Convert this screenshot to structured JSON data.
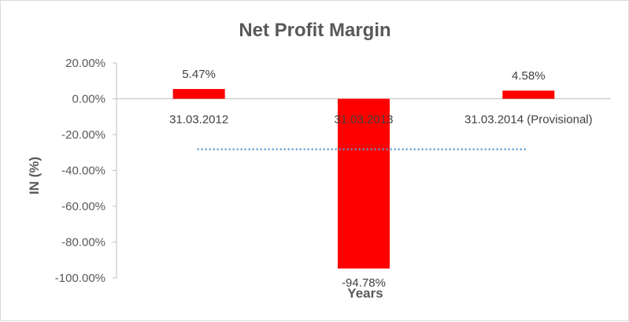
{
  "chart_data": {
    "type": "bar",
    "title": "Net Profit Margin",
    "xlabel": "Years",
    "ylabel": "IN (%)",
    "categories": [
      "31.03.2012",
      "31.03.2013",
      "31.03.2014 (Provisional)"
    ],
    "values": [
      5.47,
      -94.78,
      4.58
    ],
    "data_labels": [
      "5.47%",
      "-94.78%",
      "4.58%"
    ],
    "ylim": [
      -100,
      20
    ],
    "y_ticks": [
      20,
      0,
      -20,
      -40,
      -60,
      -80,
      -100
    ],
    "y_tick_labels": [
      "20.00%",
      "0.00%",
      "-20.00%",
      "-40.00%",
      "-60.00%",
      "-80.00%",
      "-100.00%"
    ],
    "trendline": {
      "type": "linear",
      "style": "dotted",
      "values": [
        -28.2,
        -28.2,
        -28.2
      ]
    },
    "grid": false,
    "legend": "none",
    "colors": {
      "bar": "#ff0000",
      "trendline": "#5b9bd5",
      "axis": "#bfbfbf",
      "text": "#595959"
    }
  }
}
